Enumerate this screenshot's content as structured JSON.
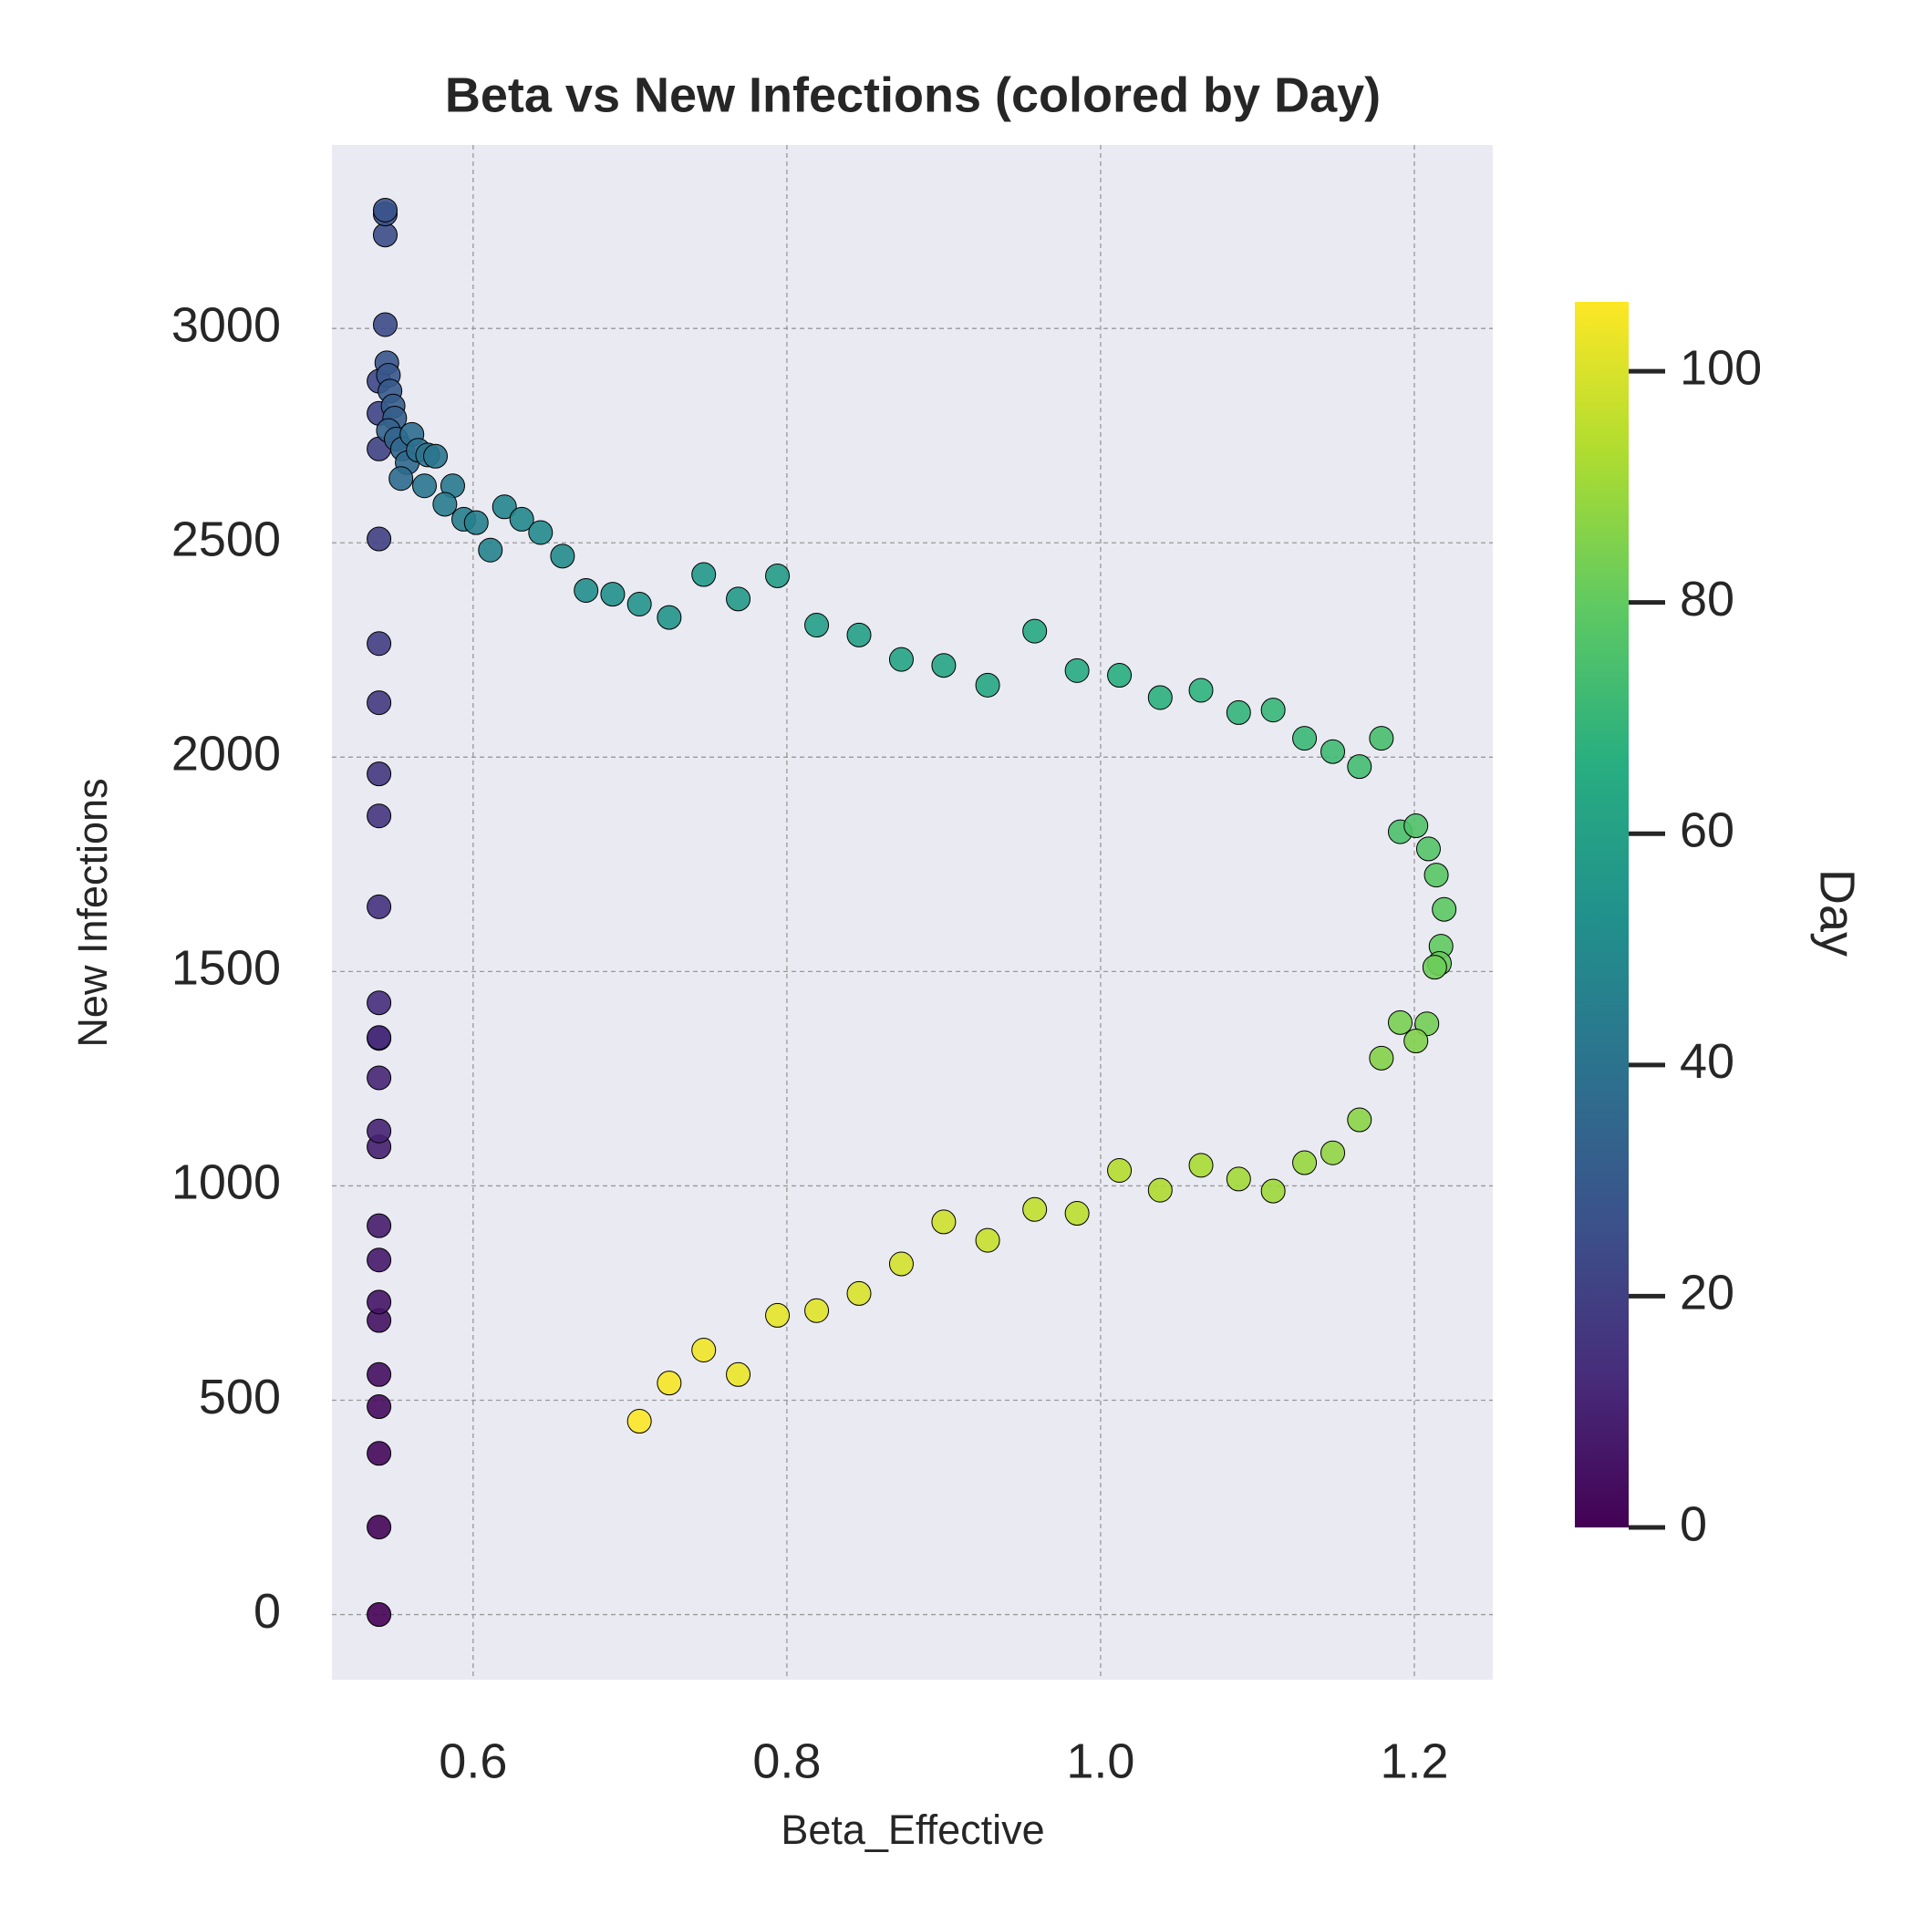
{
  "chart_data": {
    "type": "scatter",
    "title": "Beta vs New Infections (colored by Day)",
    "x_label": "Beta_Effective",
    "y_label": "New Infections",
    "x": [
      0.54,
      0.54,
      0.54,
      0.54,
      0.54,
      0.54,
      0.54,
      0.54,
      0.54,
      0.54,
      0.54,
      0.54,
      0.54,
      0.54,
      0.54,
      0.54,
      0.54,
      0.54,
      0.54,
      0.54,
      0.54,
      0.54,
      0.54,
      0.54,
      0.544,
      0.544,
      0.544,
      0.544,
      0.545,
      0.546,
      0.547,
      0.549,
      0.55,
      0.546,
      0.551,
      0.555,
      0.558,
      0.554,
      0.561,
      0.565,
      0.571,
      0.576,
      0.569,
      0.587,
      0.582,
      0.594,
      0.602,
      0.611,
      0.62,
      0.631,
      0.643,
      0.657,
      0.672,
      0.689,
      0.706,
      0.725,
      0.747,
      0.769,
      0.794,
      0.819,
      0.846,
      0.873,
      0.9,
      0.928,
      0.958,
      0.985,
      1.012,
      1.038,
      1.064,
      1.088,
      1.11,
      1.13,
      1.148,
      1.165,
      1.179,
      1.191,
      1.201,
      1.209,
      1.214,
      1.219,
      1.217,
      1.216,
      1.213,
      1.208,
      1.191,
      1.201,
      1.179,
      1.165,
      1.148,
      1.13,
      1.11,
      1.088,
      1.064,
      1.038,
      1.012,
      0.985,
      0.958,
      0.928,
      0.9,
      0.873,
      0.846,
      0.819,
      0.794,
      0.769,
      0.747,
      0.725,
      0.706
    ],
    "values": [
      0,
      204,
      376,
      485,
      560,
      686,
      729,
      827,
      907,
      1091,
      1128,
      1252,
      1344,
      1346,
      1427,
      1651,
      1863,
      1961,
      2127,
      2265,
      2509,
      2719,
      2802,
      2877,
      3009,
      3218,
      3267,
      3276,
      2920,
      2891,
      2854,
      2819,
      2791,
      2762,
      2742,
      2719,
      2687,
      2650,
      2753,
      2716,
      2705,
      2702,
      2633,
      2633,
      2590,
      2555,
      2547,
      2483,
      2584,
      2555,
      2524,
      2469,
      2389,
      2380,
      2357,
      2326,
      2426,
      2369,
      2423,
      2308,
      2285,
      2228,
      2214,
      2168,
      2294,
      2202,
      2191,
      2139,
      2156,
      2104,
      2110,
      2044,
      2013,
      1978,
      2044,
      1826,
      1840,
      1786,
      1725,
      1645,
      1559,
      1519,
      1510,
      1378,
      1381,
      1338,
      1298,
      1154,
      1077,
      1054,
      988,
      1016,
      1048,
      990,
      1036,
      936,
      945,
      873,
      916,
      818,
      749,
      709,
      698,
      560,
      617,
      540,
      451
    ],
    "colors": [
      0,
      1,
      2,
      3,
      4,
      5,
      6,
      7,
      8,
      9,
      10,
      11,
      12,
      13,
      14,
      15,
      16,
      17,
      18,
      19,
      20,
      21,
      22,
      23,
      24,
      25,
      26,
      27,
      28,
      29,
      30,
      31,
      32,
      33,
      34,
      35,
      36,
      37,
      38,
      39,
      40,
      41,
      42,
      43,
      44,
      45,
      46,
      47,
      48,
      49,
      50,
      51,
      52,
      53,
      54,
      55,
      56,
      57,
      58,
      59,
      60,
      61,
      62,
      63,
      64,
      65,
      66,
      67,
      68,
      69,
      70,
      71,
      72,
      73,
      74,
      75,
      76,
      77,
      78,
      79,
      80,
      81,
      82,
      83,
      84,
      85,
      86,
      87,
      88,
      89,
      90,
      91,
      92,
      93,
      94,
      95,
      96,
      97,
      98,
      99,
      100,
      101,
      102,
      103,
      104,
      105,
      106
    ],
    "colormap": "viridis",
    "colorbar": {
      "label": "Day",
      "lim": [
        0,
        106
      ],
      "ticks": [
        0,
        20,
        40,
        60,
        80,
        100
      ]
    },
    "xlim": [
      0.51,
      1.25
    ],
    "xticks": [
      {
        "value": 0.6,
        "label": "0.6"
      },
      {
        "value": 0.8,
        "label": "0.8"
      },
      {
        "value": 1.0,
        "label": "1.0"
      },
      {
        "value": 1.2,
        "label": "1.2"
      }
    ],
    "ylim": [
      -152,
      3428
    ],
    "yticks": [
      0,
      500,
      1000,
      1500,
      2000,
      2500,
      3000
    ],
    "grid": true
  }
}
